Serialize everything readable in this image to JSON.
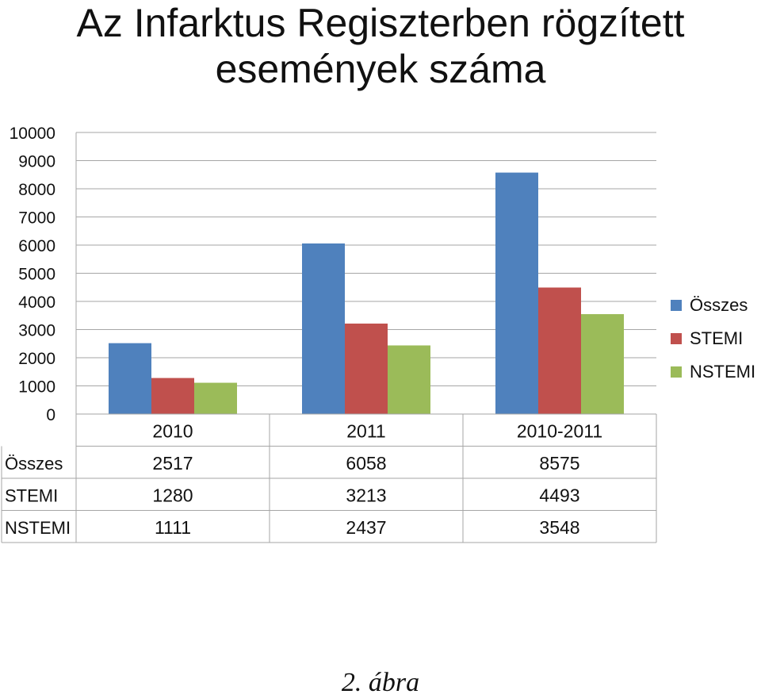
{
  "title_line1": "Az Infarktus Regiszterben rögzített",
  "title_line2": "események száma",
  "caption": "2. ábra",
  "chart_data": {
    "type": "bar",
    "title": "Az Infarktus Regiszterben rögzített események száma",
    "categories": [
      "2010",
      "2011",
      "2010-2011"
    ],
    "series": [
      {
        "name": "Összes",
        "values": [
          2517,
          6058,
          8575
        ],
        "color": "#4F81BD"
      },
      {
        "name": "STEMI",
        "values": [
          1280,
          3213,
          4493
        ],
        "color": "#C0504D"
      },
      {
        "name": "NSTEMI",
        "values": [
          1111,
          2437,
          3548
        ],
        "color": "#9BBB59"
      }
    ],
    "ylim": [
      0,
      10000
    ],
    "yticks": [
      0,
      1000,
      2000,
      3000,
      4000,
      5000,
      6000,
      7000,
      8000,
      9000,
      10000
    ],
    "grid": true,
    "legend": "right",
    "data_table": true
  }
}
